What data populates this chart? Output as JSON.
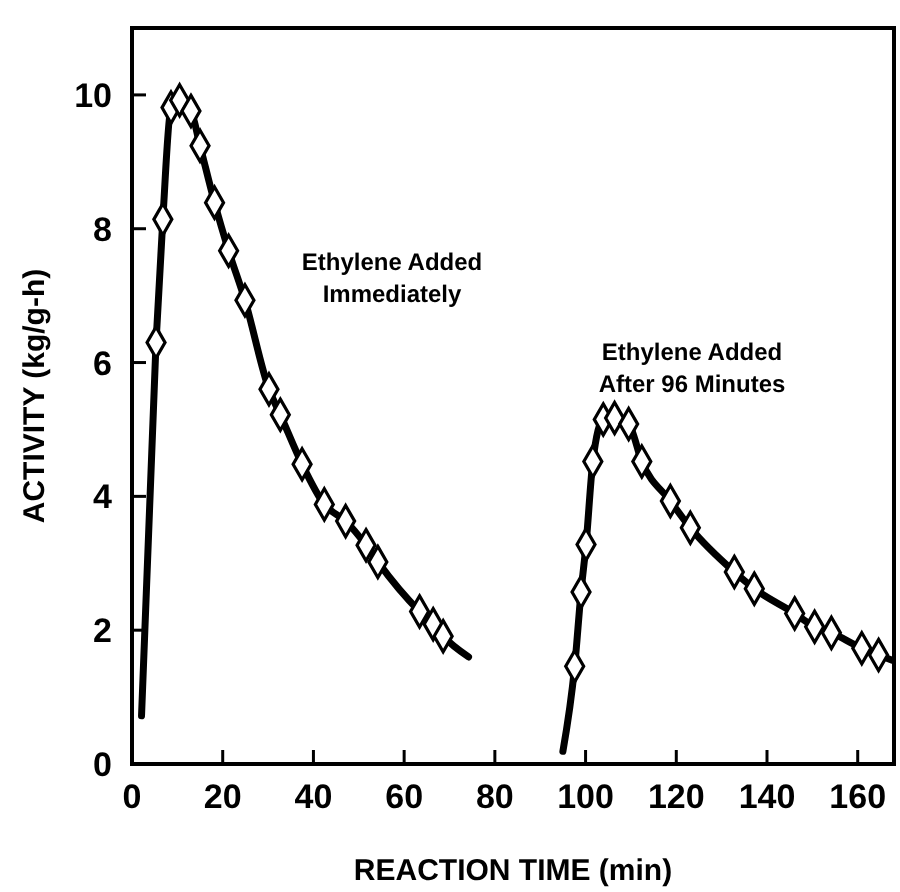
{
  "chart_data": {
    "type": "line",
    "xlabel": "REACTION TIME (min)",
    "ylabel": "ACTIVITY (kg/g-h)",
    "xlim": [
      0,
      168
    ],
    "ylim": [
      0,
      11
    ],
    "xticks": [
      0,
      20,
      40,
      60,
      80,
      100,
      120,
      140,
      160
    ],
    "yticks": [
      0,
      2,
      4,
      6,
      8,
      10
    ],
    "annotations": [
      "Ethylene Added\nImmediately",
      "Ethylene Added\nAfter 96 Minutes"
    ],
    "series": [
      {
        "marker": "none",
        "color": "#000000",
        "x": [
          2.1,
          5.3,
          6.8,
          8.6,
          10.5,
          13.0,
          15.0,
          18.2,
          21.3,
          24.9,
          30.2,
          32.7,
          37.5,
          42.4,
          47.1,
          51.6,
          54.2,
          63.4,
          66.4,
          68.6,
          74.2
        ],
        "values": [
          0.72,
          6.3,
          8.14,
          9.81,
          9.92,
          9.76,
          9.24,
          8.39,
          7.67,
          6.93,
          5.6,
          5.22,
          4.48,
          3.88,
          3.63,
          3.27,
          3.02,
          2.28,
          2.09,
          1.91,
          1.6
        ]
      },
      {
        "type": "scatter",
        "marker": "diamond",
        "color": "#000000",
        "x": [
          5.3,
          6.8,
          8.6,
          10.5,
          13.0,
          15.0,
          18.2,
          21.3,
          24.9,
          30.2,
          32.7,
          37.5,
          42.4,
          47.1,
          51.6,
          54.2,
          63.4,
          66.4,
          68.6
        ],
        "values": [
          6.3,
          8.14,
          9.81,
          9.92,
          9.76,
          9.24,
          8.39,
          7.67,
          6.93,
          5.6,
          5.22,
          4.48,
          3.88,
          3.63,
          3.27,
          3.02,
          2.28,
          2.09,
          1.91
        ]
      },
      {
        "marker": "none",
        "color": "#000000",
        "x": [
          95.0,
          97.6,
          99.0,
          100.1,
          101.6,
          103.9,
          106.4,
          109.5,
          112.4,
          118.7,
          123.1,
          132.8,
          137.2,
          146.1,
          150.5,
          154.2,
          160.9,
          164.6,
          167.6
        ],
        "values": [
          0.19,
          1.46,
          2.57,
          3.28,
          4.52,
          5.15,
          5.17,
          5.08,
          4.52,
          3.93,
          3.53,
          2.87,
          2.62,
          2.25,
          2.05,
          1.96,
          1.73,
          1.63,
          1.55
        ]
      },
      {
        "type": "scatter",
        "marker": "diamond",
        "color": "#000000",
        "x": [
          97.6,
          99.0,
          100.1,
          101.6,
          103.9,
          106.4,
          109.5,
          112.4,
          118.7,
          123.1,
          132.8,
          137.2,
          146.1,
          150.5,
          154.2,
          160.9,
          164.6
        ],
        "values": [
          1.46,
          2.57,
          3.28,
          4.52,
          5.15,
          5.17,
          5.08,
          4.52,
          3.93,
          3.53,
          2.87,
          2.62,
          2.25,
          2.05,
          1.96,
          1.73,
          1.63
        ]
      }
    ]
  }
}
